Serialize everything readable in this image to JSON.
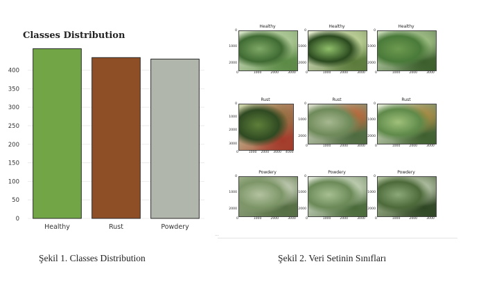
{
  "chart_data": {
    "type": "bar",
    "title": "Classes Distribution",
    "categories": [
      "Healthy",
      "Rust",
      "Powdery"
    ],
    "values": [
      458,
      434,
      430
    ],
    "colors": [
      "#72a545",
      "#8e4f26",
      "#b1b6ac"
    ],
    "edge_color": "#2a2a2a",
    "ylim": [
      0,
      470
    ],
    "yticks": [
      0,
      50,
      100,
      150,
      200,
      250,
      300,
      350,
      400
    ],
    "xlabel": "",
    "ylabel": "",
    "grid": "horizontal"
  },
  "figure_grid": {
    "panels": [
      {
        "title": "Healthy",
        "yticks": [
          "0",
          "1000",
          "2000"
        ],
        "xticks": [
          "0",
          "1000",
          "2000",
          "3000"
        ],
        "palette": [
          "#3f6a32",
          "#7ea866",
          "#b6cf9c",
          "#5b8a45",
          "#d7e4c7"
        ]
      },
      {
        "title": "Healthy",
        "yticks": [
          "0",
          "1000",
          "2000"
        ],
        "xticks": [
          "0",
          "1000",
          "2000",
          "3000"
        ],
        "palette": [
          "#2b4a1f",
          "#8fbf6a",
          "#c7db9e",
          "#5a7a3a",
          "#e6ecd0"
        ]
      },
      {
        "title": "Healthy",
        "yticks": [
          "0",
          "1000",
          "2000"
        ],
        "xticks": [
          "0",
          "1000",
          "2000",
          "3000"
        ],
        "palette": [
          "#4a7a3a",
          "#6d9a4f",
          "#a8c98a",
          "#3b5e2c",
          "#c9dcb8"
        ]
      },
      {
        "title": "Rust",
        "yticks": [
          "0",
          "1000",
          "2000",
          "3000"
        ],
        "xticks": [
          "0",
          "1000",
          "2000",
          "3000",
          "4000"
        ],
        "palette": [
          "#2f4a22",
          "#5e7f3a",
          "#8e6a3a",
          "#a33a2a",
          "#c9d6a8"
        ]
      },
      {
        "title": "Rust",
        "yticks": [
          "0",
          "1000",
          "2000"
        ],
        "xticks": [
          "0",
          "1000",
          "2000",
          "3000"
        ],
        "palette": [
          "#6f8a5a",
          "#a6b890",
          "#c85a2a",
          "#4e6a3f",
          "#d8dcc8"
        ]
      },
      {
        "title": "Rust",
        "yticks": [
          "0",
          "1000",
          "2000"
        ],
        "xticks": [
          "0",
          "1000",
          "2000",
          "3000"
        ],
        "palette": [
          "#5f8a4a",
          "#9fc07a",
          "#b4883a",
          "#3f5f2f",
          "#dfe8d0"
        ]
      },
      {
        "title": "Powdery",
        "yticks": [
          "0",
          "1000",
          "2000"
        ],
        "xticks": [
          "0",
          "1000",
          "2000",
          "3000"
        ],
        "palette": [
          "#7d9668",
          "#b3c2a0",
          "#d5dcc8",
          "#566e44",
          "#98ab84"
        ]
      },
      {
        "title": "Powdery",
        "yticks": [
          "0",
          "1000",
          "2000"
        ],
        "xticks": [
          "0",
          "1000",
          "2000",
          "3000"
        ],
        "palette": [
          "#6b8a58",
          "#a7bf92",
          "#cfdcc2",
          "#4a6a3a",
          "#e0e8d8"
        ]
      },
      {
        "title": "Powdery",
        "yticks": [
          "0",
          "1000",
          "2000"
        ],
        "xticks": [
          "0",
          "1000",
          "2000",
          "3000"
        ],
        "palette": [
          "#4d6a3a",
          "#8aa878",
          "#c6d3b8",
          "#2f4624",
          "#b0c29c"
        ]
      }
    ]
  },
  "captions": {
    "figure1": "Şekil 1. Classes Distribution",
    "figure2": "Şekil 2. Veri Setinin Sınıfları"
  },
  "ellipsis": "..."
}
